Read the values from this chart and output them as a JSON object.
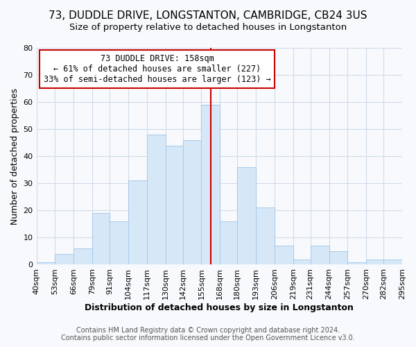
{
  "title": "73, DUDDLE DRIVE, LONGSTANTON, CAMBRIDGE, CB24 3US",
  "subtitle": "Size of property relative to detached houses in Longstanton",
  "xlabel": "Distribution of detached houses by size in Longstanton",
  "ylabel": "Number of detached properties",
  "footer_line1": "Contains HM Land Registry data © Crown copyright and database right 2024.",
  "footer_line2": "Contains public sector information licensed under the Open Government Licence v3.0.",
  "bar_color": "#d6e8f7",
  "bar_edge_color": "#a8c8e8",
  "reference_line_color": "#cc0000",
  "reference_line_x": 161.5,
  "annotation_title": "73 DUDDLE DRIVE: 158sqm",
  "annotation_line1": "← 61% of detached houses are smaller (227)",
  "annotation_line2": "33% of semi-detached houses are larger (123) →",
  "annotation_box_edge_color": "#cc0000",
  "annotation_box_face_color": "#ffffff",
  "bin_edges": [
    40,
    53,
    66,
    79,
    91,
    104,
    117,
    130,
    142,
    155,
    168,
    180,
    193,
    206,
    219,
    231,
    244,
    257,
    270,
    282,
    295
  ],
  "bar_heights": [
    1,
    4,
    6,
    19,
    16,
    31,
    48,
    44,
    46,
    59,
    16,
    36,
    21,
    7,
    2,
    7,
    5,
    1,
    2,
    2
  ],
  "ylim": [
    0,
    80
  ],
  "yticks": [
    0,
    10,
    20,
    30,
    40,
    50,
    60,
    70,
    80
  ],
  "background_color": "#f7f9fc",
  "grid_color": "#d0dcea",
  "title_fontsize": 11,
  "subtitle_fontsize": 9.5,
  "axis_label_fontsize": 9,
  "tick_fontsize": 8,
  "footer_fontsize": 7,
  "annotation_fontsize": 8.5
}
